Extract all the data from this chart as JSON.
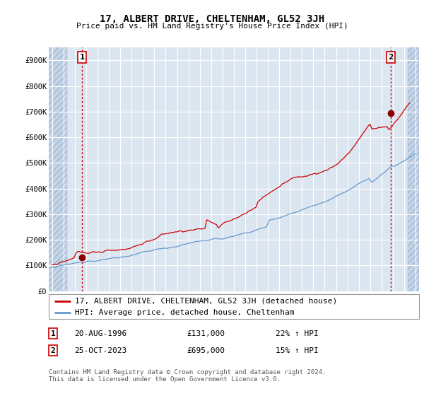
{
  "title": "17, ALBERT DRIVE, CHELTENHAM, GL52 3JH",
  "subtitle": "Price paid vs. HM Land Registry's House Price Index (HPI)",
  "ylim": [
    0,
    950000
  ],
  "yticks": [
    0,
    100000,
    200000,
    300000,
    400000,
    500000,
    600000,
    700000,
    800000,
    900000
  ],
  "ytick_labels": [
    "£0",
    "£100K",
    "£200K",
    "£300K",
    "£400K",
    "£500K",
    "£600K",
    "£700K",
    "£800K",
    "£900K"
  ],
  "xlim_start": 1993.7,
  "xlim_end": 2026.3,
  "plot_bg": "#dce6f1",
  "hatch_color": "#c5d5e8",
  "grid_color": "#ffffff",
  "red_line_color": "#cc0000",
  "blue_line_color": "#6699cc",
  "dot_color": "#8b0000",
  "legend_line1": "17, ALBERT DRIVE, CHELTENHAM, GL52 3JH (detached house)",
  "legend_line2": "HPI: Average price, detached house, Cheltenham",
  "point1_x": 1996.64,
  "point1_y": 131000,
  "point1_label": "1",
  "point1_date": "20-AUG-1996",
  "point1_price": "£131,000",
  "point1_hpi": "22% ↑ HPI",
  "point2_x": 2023.81,
  "point2_y": 695000,
  "point2_label": "2",
  "point2_date": "25-OCT-2023",
  "point2_price": "£695,000",
  "point2_hpi": "15% ↑ HPI",
  "footer": "Contains HM Land Registry data © Crown copyright and database right 2024.\nThis data is licensed under the Open Government Licence v3.0.",
  "title_fontsize": 10,
  "subtitle_fontsize": 8,
  "tick_fontsize": 7.5,
  "legend_fontsize": 8,
  "footer_fontsize": 6.5,
  "hatch_left_end": 1995.3,
  "hatch_right_start": 2025.3
}
